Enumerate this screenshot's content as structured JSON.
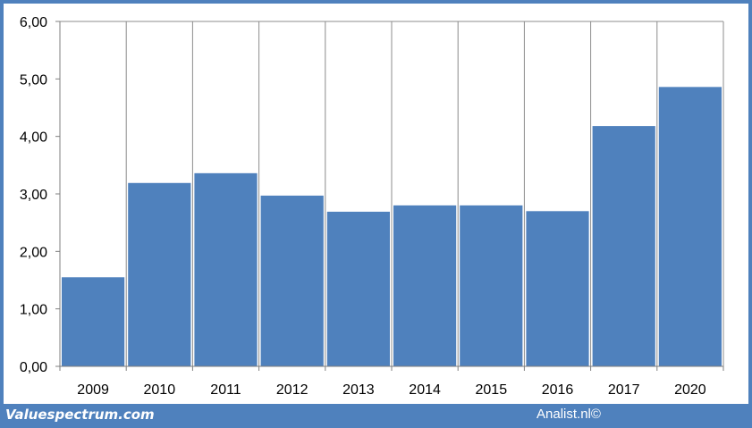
{
  "chart_data": {
    "type": "bar",
    "categories": [
      "2009",
      "2010",
      "2011",
      "2012",
      "2013",
      "2014",
      "2015",
      "2016",
      "2017",
      "2020"
    ],
    "values": [
      1.55,
      3.19,
      3.36,
      2.97,
      2.69,
      2.8,
      2.8,
      2.7,
      4.18,
      4.86
    ],
    "y_ticks": [
      "0,00",
      "1,00",
      "2,00",
      "3,00",
      "4,00",
      "5,00",
      "6,00"
    ],
    "ylim": [
      0,
      6
    ],
    "grid": "vertical",
    "bar_color": "#4f81bd"
  },
  "footer": {
    "left": "Valuespectrum.com",
    "right": "Analist.nl©"
  }
}
